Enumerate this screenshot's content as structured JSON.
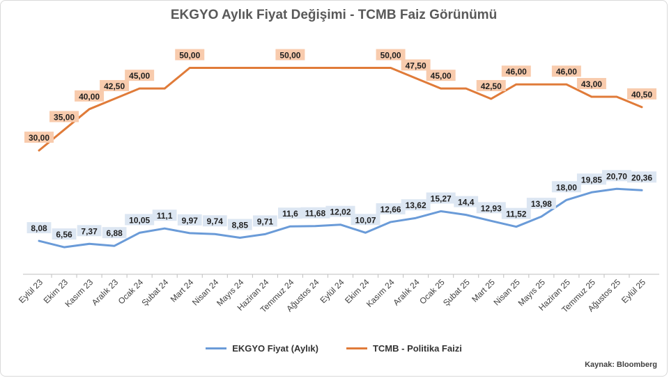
{
  "chart_data": {
    "type": "line",
    "title": "EKGYO Aylık Fiyat Değişimi - TCMB Faiz Görünümü",
    "source": "Kaynak: Bloomberg",
    "legend_position": "bottom",
    "grid": false,
    "ylim": [
      0,
      57
    ],
    "categories": [
      "Eylül 23",
      "Ekim 23",
      "Kasım 23",
      "Aralık 23",
      "Ocak 24",
      "Şubat 24",
      "Mart 24",
      "Nisan 24",
      "Mayıs 24",
      "Haziran 24",
      "Temmuz 24",
      "Ağustos 24",
      "Eylül 24",
      "Ekim 24",
      "Kasım 24",
      "Aralık 24",
      "Ocak 25",
      "Şubat 25",
      "Mart 25",
      "Nisan 25",
      "Mayıs 25",
      "Haziran 25",
      "Temmuz 25",
      "Ağustos 25",
      "Eylül 25"
    ],
    "series": [
      {
        "name": "EKGYO Fiyat (Aylık)",
        "color": "#6a9bd8",
        "values": [
          8.08,
          6.56,
          7.37,
          6.88,
          10.05,
          11.1,
          9.97,
          9.74,
          8.85,
          9.71,
          11.6,
          11.68,
          12.02,
          10.07,
          12.66,
          13.62,
          15.27,
          14.4,
          12.93,
          11.52,
          13.98,
          18.0,
          19.85,
          20.7,
          20.36
        ],
        "labels": [
          "8,08",
          "6,56",
          "7,37",
          "6,88",
          "10,05",
          "11,1",
          "9,97",
          "9,74",
          "8,85",
          "9,71",
          "11,6",
          "11,68",
          "12,02",
          "10,07",
          "12,66",
          "13,62",
          "15,27",
          "14,4",
          "12,93",
          "11,52",
          "13,98",
          "18,00",
          "19,85",
          "20,70",
          "20,36"
        ],
        "label_bg": "#dce6f2"
      },
      {
        "name": "TCMB - Politika Faizi",
        "color": "#e07b39",
        "values": [
          30.0,
          35.0,
          40.0,
          42.5,
          45.0,
          45.0,
          50.0,
          50.0,
          50.0,
          50.0,
          50.0,
          50.0,
          50.0,
          50.0,
          50.0,
          47.5,
          45.0,
          45.0,
          42.5,
          46.0,
          46.0,
          46.0,
          43.0,
          43.0,
          40.5
        ],
        "labels": [
          "30,00",
          "35,00",
          "40,00",
          "42,50",
          "45,00",
          "",
          "50,00",
          "",
          "",
          "",
          "50,00",
          "",
          "",
          "",
          "50,00",
          "47,50",
          "45,00",
          "",
          "42,50",
          "46,00",
          "",
          "46,00",
          "43,00",
          "",
          "40,50"
        ],
        "label_bg": "#f8cbad"
      }
    ]
  }
}
